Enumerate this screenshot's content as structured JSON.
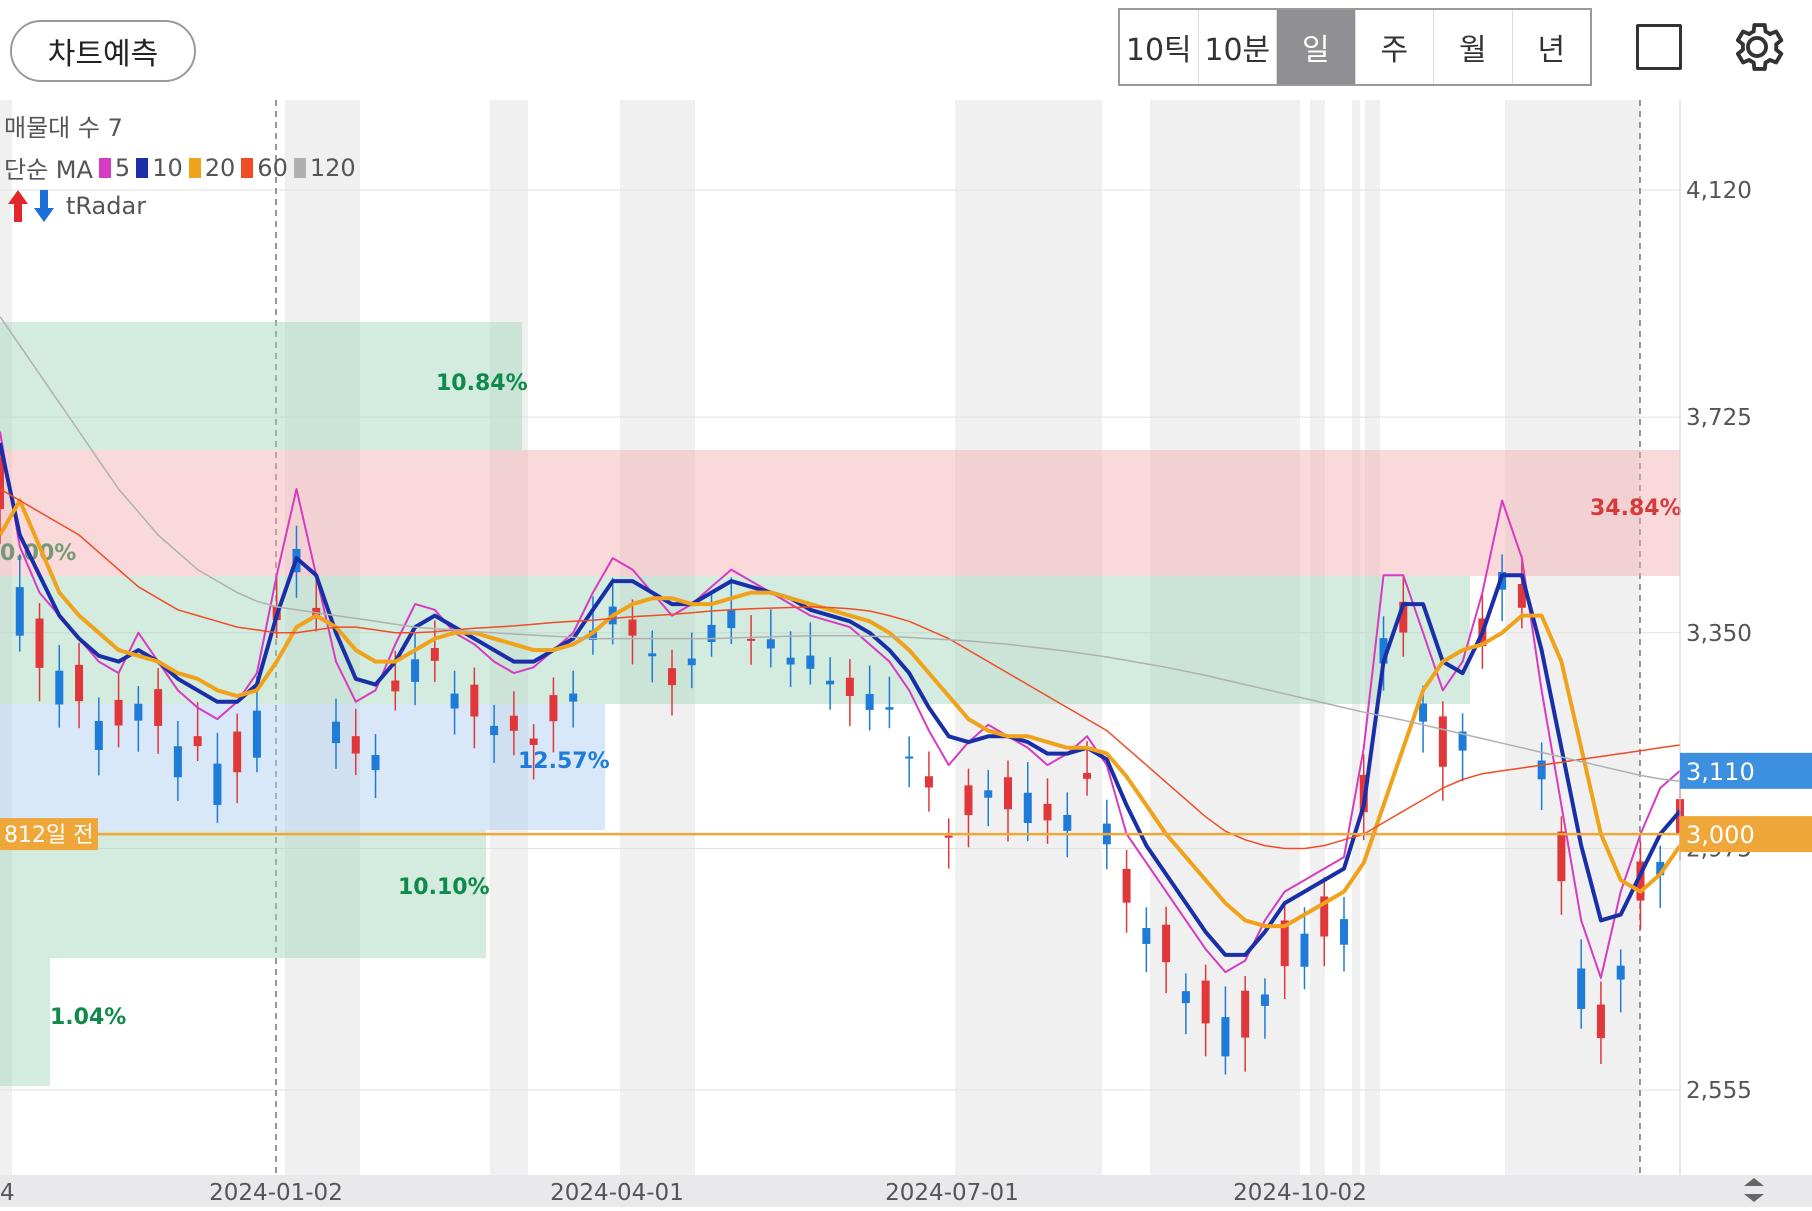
{
  "header": {
    "predict_label": "차트예측",
    "periods": [
      "10틱",
      "10분",
      "일",
      "주",
      "월",
      "년"
    ],
    "active_period": "일"
  },
  "legend": {
    "line1": "매물대 수 7",
    "ma_label": "단순 MA",
    "ma_periods": [
      "5",
      "10",
      "20",
      "60",
      "120"
    ],
    "radar_label": "tRadar"
  },
  "colors": {
    "up": "#e0373b",
    "down": "#1e7bd8",
    "ma5": "#d63bc1",
    "ma10": "#1a2ea8",
    "ma20": "#f0a21b",
    "ma60": "#f04c25",
    "ma120": "#b0b0b0",
    "price_badge": "#3d8fe0",
    "target_badge": "#f0a73a"
  },
  "chart_data": {
    "type": "candlestick",
    "y_ticks": [
      "4,120",
      "3,725",
      "3,350",
      "2,975",
      "2,555"
    ],
    "x_ticks": [
      "4",
      "2024-01-02",
      "2024-04-01",
      "2024-07-01",
      "2024-10-02"
    ],
    "current_price_label": "3,110",
    "target_price_label": "3,000",
    "target_note": "812일 전",
    "zones": [
      {
        "label": "0.00%",
        "tone": "green"
      },
      {
        "label": "10.84%",
        "tone": "green"
      },
      {
        "label": "34.84%",
        "tone": "red"
      },
      {
        "label": "12.57%",
        "tone": "blue"
      },
      {
        "label": "10.10%",
        "tone": "green"
      },
      {
        "label": "1.04%",
        "tone": "green"
      }
    ],
    "ma_series": [
      {
        "name": "5",
        "values": [
          3700,
          3500,
          3420,
          3380,
          3340,
          3300,
          3280,
          3350,
          3300,
          3250,
          3220,
          3200,
          3230,
          3280,
          3450,
          3600,
          3450,
          3300,
          3230,
          3250,
          3330,
          3400,
          3390,
          3350,
          3330,
          3300,
          3280,
          3290,
          3320,
          3350,
          3420,
          3480,
          3460,
          3420,
          3380,
          3400,
          3430,
          3460,
          3440,
          3420,
          3400,
          3380,
          3370,
          3360,
          3330,
          3300,
          3250,
          3180,
          3120,
          3160,
          3190,
          3170,
          3150,
          3120,
          3140,
          3170,
          3120,
          3000,
          2950,
          2900,
          2850,
          2800,
          2760,
          2780,
          2850,
          2900,
          2920,
          2940,
          2960,
          3150,
          3450,
          3450,
          3350,
          3250,
          3300,
          3420,
          3580,
          3480,
          3250,
          3050,
          2850,
          2750,
          2900,
          3000,
          3080,
          3110
        ]
      },
      {
        "name": "10",
        "values": [
          3680,
          3520,
          3450,
          3380,
          3340,
          3310,
          3300,
          3320,
          3300,
          3270,
          3250,
          3230,
          3230,
          3260,
          3380,
          3480,
          3450,
          3350,
          3270,
          3260,
          3300,
          3360,
          3380,
          3360,
          3340,
          3320,
          3300,
          3300,
          3320,
          3340,
          3390,
          3440,
          3440,
          3420,
          3400,
          3400,
          3420,
          3440,
          3430,
          3420,
          3410,
          3390,
          3380,
          3370,
          3350,
          3320,
          3280,
          3220,
          3170,
          3160,
          3170,
          3170,
          3160,
          3140,
          3140,
          3150,
          3130,
          3050,
          2980,
          2930,
          2880,
          2830,
          2790,
          2790,
          2830,
          2880,
          2900,
          2920,
          2940,
          3050,
          3300,
          3400,
          3400,
          3300,
          3280,
          3350,
          3450,
          3450,
          3320,
          3150,
          2980,
          2850,
          2860,
          2930,
          3000,
          3040
        ]
      },
      {
        "name": "20",
        "values": [
          3520,
          3580,
          3500,
          3420,
          3380,
          3350,
          3320,
          3310,
          3300,
          3280,
          3270,
          3250,
          3240,
          3250,
          3300,
          3360,
          3380,
          3360,
          3320,
          3300,
          3300,
          3320,
          3340,
          3350,
          3350,
          3340,
          3330,
          3320,
          3320,
          3330,
          3350,
          3380,
          3400,
          3410,
          3410,
          3400,
          3400,
          3410,
          3420,
          3420,
          3410,
          3400,
          3390,
          3380,
          3370,
          3350,
          3320,
          3280,
          3240,
          3200,
          3180,
          3170,
          3170,
          3160,
          3150,
          3150,
          3140,
          3100,
          3050,
          3000,
          2960,
          2920,
          2880,
          2850,
          2840,
          2840,
          2860,
          2880,
          2900,
          2950,
          3050,
          3150,
          3250,
          3300,
          3320,
          3330,
          3350,
          3380,
          3380,
          3300,
          3150,
          3000,
          2920,
          2900,
          2930,
          2980
        ]
      },
      {
        "name": "60",
        "values": [
          3600,
          3580,
          3560,
          3540,
          3520,
          3490,
          3460,
          3430,
          3410,
          3390,
          3380,
          3370,
          3360,
          3355,
          3350,
          3350,
          3355,
          3360,
          3360,
          3355,
          3350,
          3350,
          3352,
          3355,
          3358,
          3360,
          3362,
          3365,
          3368,
          3370,
          3372,
          3375,
          3378,
          3380,
          3382,
          3385,
          3388,
          3390,
          3392,
          3393,
          3394,
          3395,
          3394,
          3392,
          3388,
          3380,
          3370,
          3355,
          3340,
          3320,
          3300,
          3280,
          3260,
          3240,
          3220,
          3200,
          3180,
          3150,
          3120,
          3090,
          3060,
          3030,
          3005,
          2990,
          2980,
          2975,
          2975,
          2980,
          2990,
          3000,
          3020,
          3040,
          3060,
          3080,
          3095,
          3105,
          3110,
          3115,
          3120,
          3125,
          3130,
          3135,
          3140,
          3145,
          3150,
          3155
        ]
      },
      {
        "name": "120",
        "values": [
          3900,
          3850,
          3800,
          3750,
          3700,
          3650,
          3600,
          3560,
          3520,
          3490,
          3460,
          3440,
          3420,
          3405,
          3395,
          3390,
          3385,
          3380,
          3375,
          3370,
          3365,
          3360,
          3357,
          3355,
          3352,
          3350,
          3348,
          3346,
          3344,
          3342,
          3340,
          3340,
          3340,
          3340,
          3340,
          3340,
          3340,
          3341,
          3342,
          3343,
          3344,
          3345,
          3345,
          3345,
          3344,
          3343,
          3342,
          3340,
          3338,
          3336,
          3333,
          3330,
          3326,
          3322,
          3318,
          3313,
          3308,
          3302,
          3296,
          3290,
          3283,
          3276,
          3268,
          3260,
          3252,
          3244,
          3236,
          3228,
          3220,
          3212,
          3205,
          3198,
          3190,
          3182,
          3174,
          3166,
          3158,
          3150,
          3142,
          3134,
          3126,
          3118,
          3110,
          3102,
          3096,
          3092
        ]
      }
    ]
  }
}
